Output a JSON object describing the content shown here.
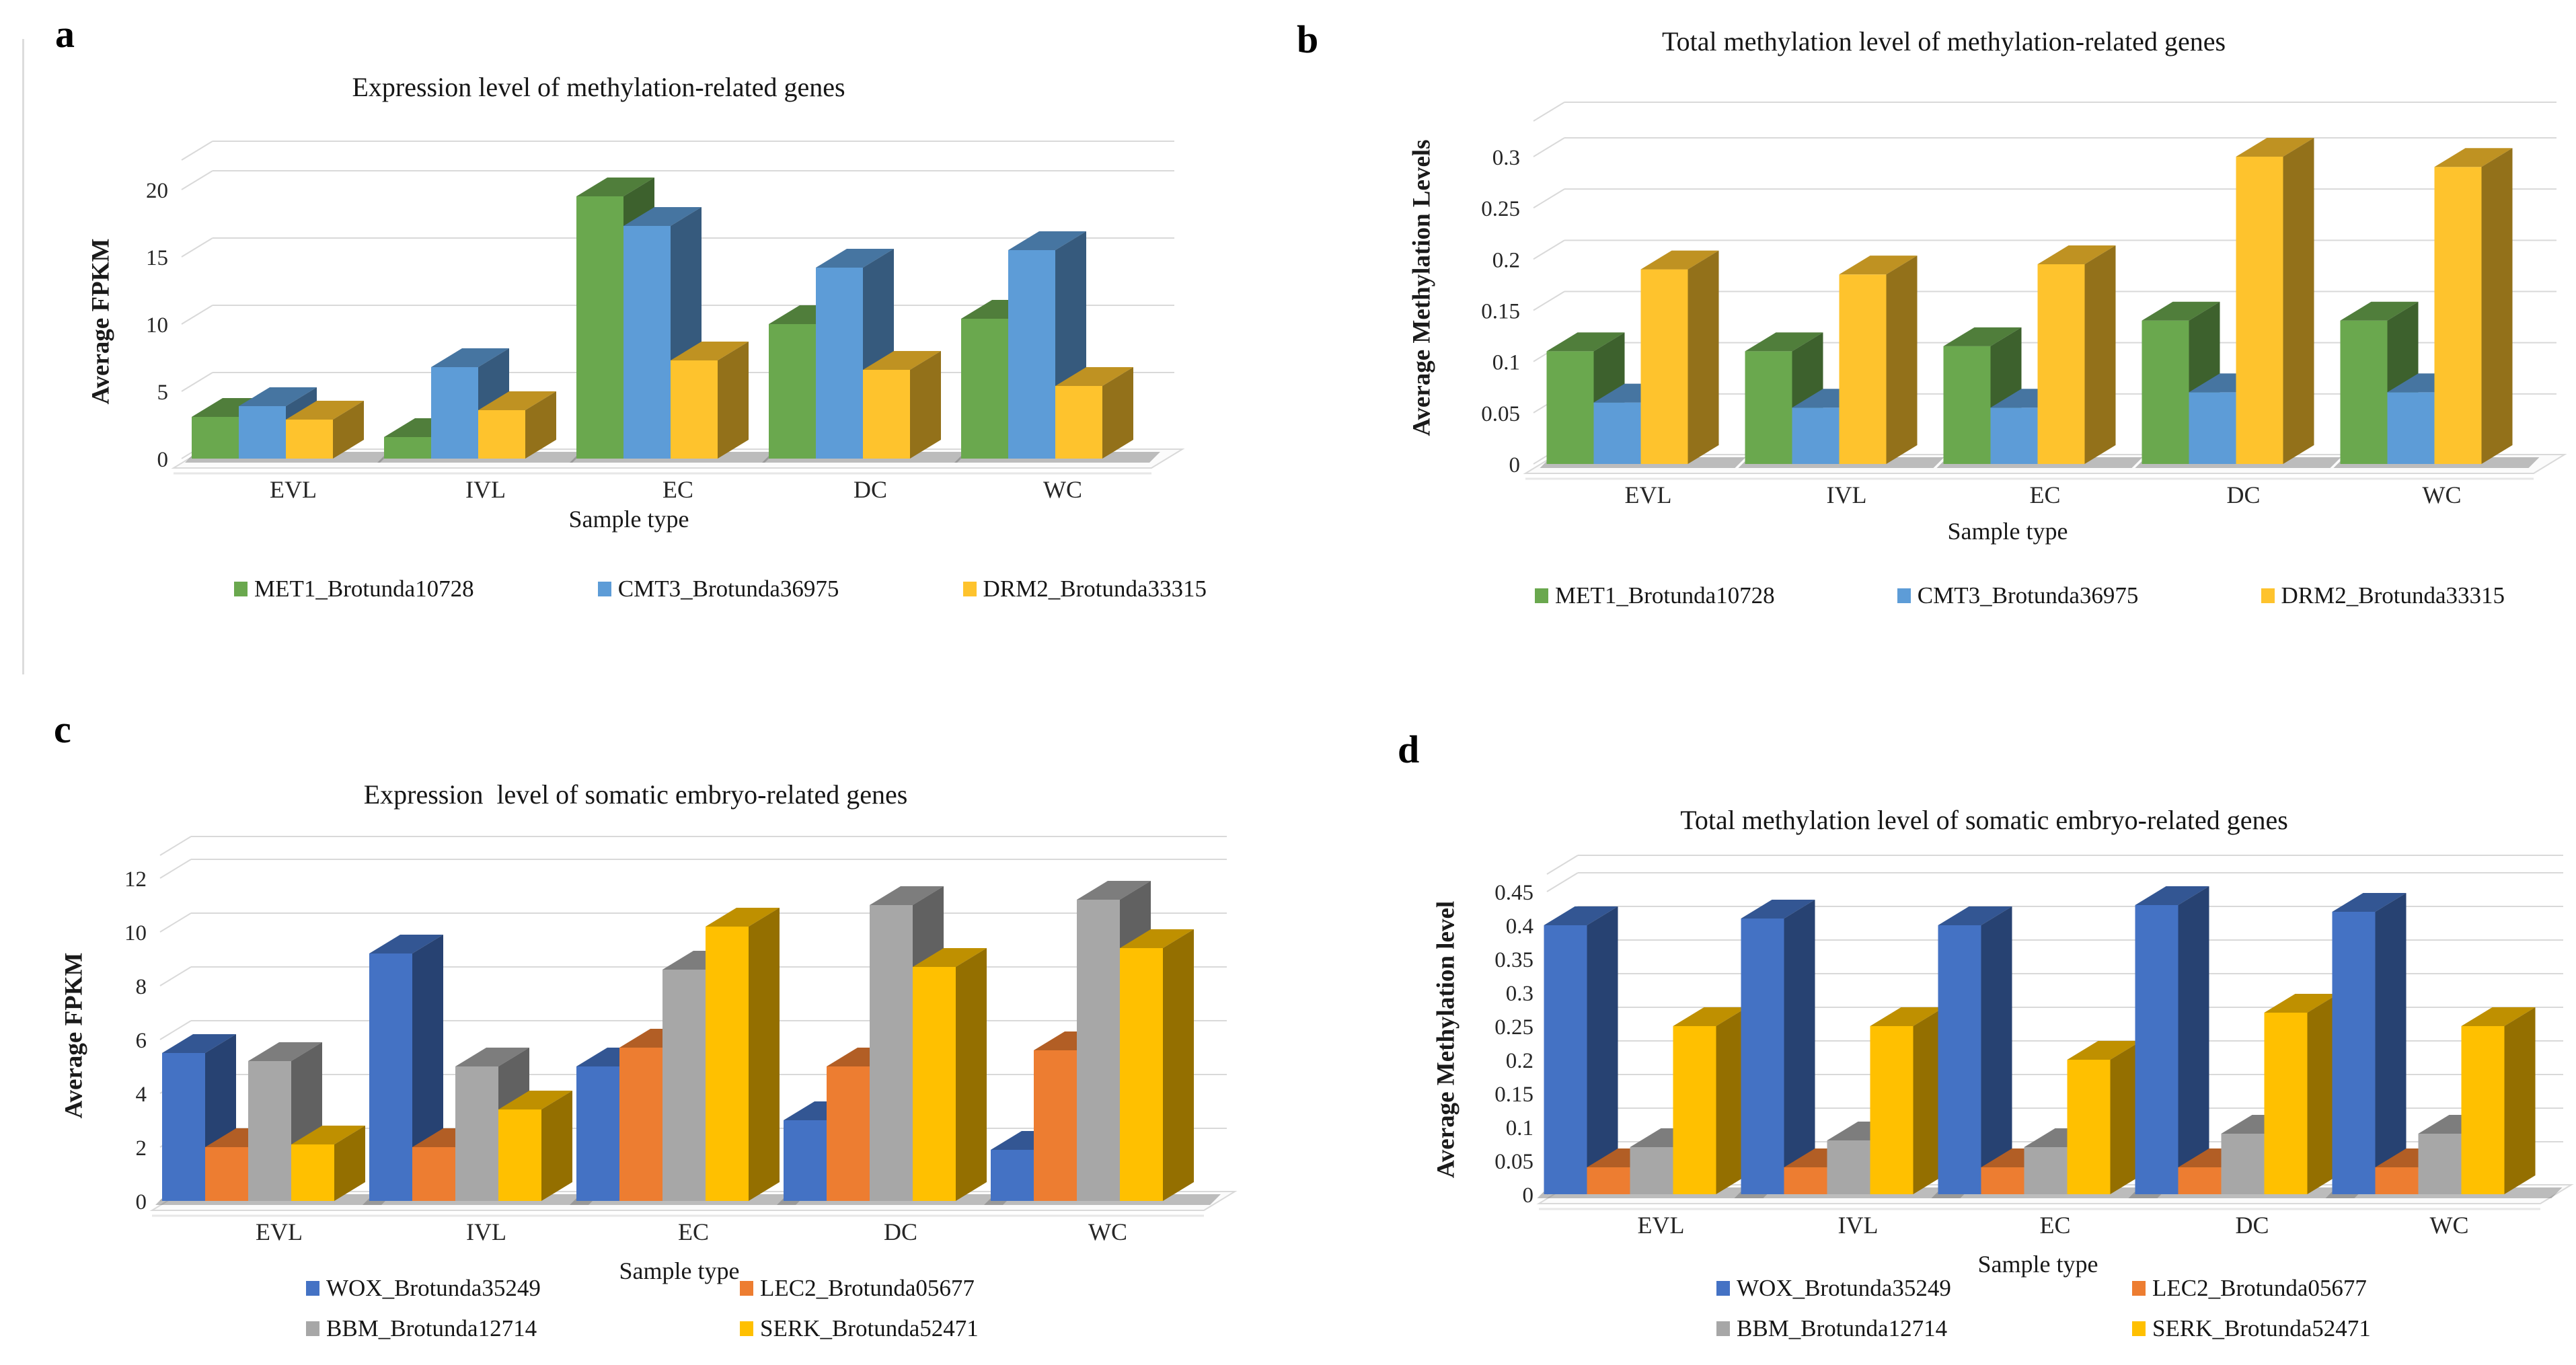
{
  "chart_data": [
    {
      "panel_letter": "a",
      "type": "bar",
      "bar_style": "3d",
      "title": "Expression level of methylation-related genes",
      "xlabel": "Sample type",
      "ylabel": "Average FPKM",
      "categories": [
        "EVL",
        "IVL",
        "EC",
        "DC",
        "WC"
      ],
      "series": [
        {
          "name": "MET1_Brotunda10728",
          "color": "#6aa84e",
          "values": [
            3.1,
            1.6,
            19.5,
            10.0,
            10.4
          ]
        },
        {
          "name": "CMT3_Brotunda36975",
          "color": "#5d9cd7",
          "values": [
            3.9,
            6.8,
            17.3,
            14.2,
            15.5
          ]
        },
        {
          "name": "DRM2_Brotunda33315",
          "color": "#fec32d",
          "values": [
            2.9,
            3.6,
            7.3,
            6.6,
            5.4
          ]
        }
      ],
      "ylim": [
        0,
        20
      ],
      "ytick_step": 5,
      "grid": true,
      "legend_position": "bottom"
    },
    {
      "panel_letter": "b",
      "type": "bar",
      "bar_style": "3d",
      "title": "Total methylation level of methylation-related genes",
      "xlabel": "Sample type",
      "ylabel": "Average Methylation Levels",
      "categories": [
        "EVL",
        "IVL",
        "EC",
        "DC",
        "WC"
      ],
      "series": [
        {
          "name": "MET1_Brotunda10728",
          "color": "#6aa84e",
          "values": [
            0.11,
            0.11,
            0.115,
            0.14,
            0.14
          ]
        },
        {
          "name": "CMT3_Brotunda36975",
          "color": "#5d9cd7",
          "values": [
            0.06,
            0.055,
            0.055,
            0.07,
            0.07
          ]
        },
        {
          "name": "DRM2_Brotunda33315",
          "color": "#fec32d",
          "values": [
            0.19,
            0.185,
            0.195,
            0.3,
            0.29
          ]
        }
      ],
      "ylim": [
        0,
        0.3
      ],
      "ytick_step": 0.05,
      "grid": true,
      "legend_position": "bottom"
    },
    {
      "panel_letter": "c",
      "type": "bar",
      "bar_style": "3d",
      "title": "Expression  level of somatic embryo-related genes",
      "xlabel": "Sample type",
      "ylabel": "Average FPKM",
      "categories": [
        "EVL",
        "IVL",
        "EC",
        "DC",
        "WC"
      ],
      "series": [
        {
          "name": "WOX_Brotunda35249",
          "color": "#4472c4",
          "values": [
            5.5,
            9.2,
            5.0,
            3.0,
            1.9
          ]
        },
        {
          "name": "LEC2_Brotunda05677",
          "color": "#ed7d31",
          "values": [
            2.0,
            2.0,
            5.7,
            5.0,
            5.6
          ]
        },
        {
          "name": "BBM_Brotunda12714",
          "color": "#a7a7a7",
          "values": [
            5.2,
            5.0,
            8.6,
            11.0,
            11.2
          ]
        },
        {
          "name": "SERK_Brotunda52471",
          "color": "#ffc000",
          "values": [
            2.1,
            3.4,
            10.2,
            8.7,
            9.4
          ]
        }
      ],
      "ylim": [
        0,
        12
      ],
      "ytick_step": 2,
      "grid": true,
      "legend_position": "bottom"
    },
    {
      "panel_letter": "d",
      "type": "bar",
      "bar_style": "3d",
      "title": "Total methylation level of somatic embryo-related genes",
      "xlabel": "Sample type",
      "ylabel": "Average Methylation level",
      "categories": [
        "EVL",
        "IVL",
        "EC",
        "DC",
        "WC"
      ],
      "series": [
        {
          "name": "WOX_Brotunda35249",
          "color": "#4472c4",
          "values": [
            0.4,
            0.41,
            0.4,
            0.43,
            0.42
          ]
        },
        {
          "name": "LEC2_Brotunda05677",
          "color": "#ed7d31",
          "values": [
            0.04,
            0.04,
            0.04,
            0.04,
            0.04
          ]
        },
        {
          "name": "BBM_Brotunda12714",
          "color": "#a7a7a7",
          "values": [
            0.07,
            0.08,
            0.07,
            0.09,
            0.09
          ]
        },
        {
          "name": "SERK_Brotunda52471",
          "color": "#ffc000",
          "values": [
            0.25,
            0.25,
            0.2,
            0.27,
            0.25
          ]
        }
      ],
      "ylim": [
        0,
        0.45
      ],
      "ytick_step": 0.05,
      "grid": true,
      "legend_position": "bottom"
    }
  ]
}
